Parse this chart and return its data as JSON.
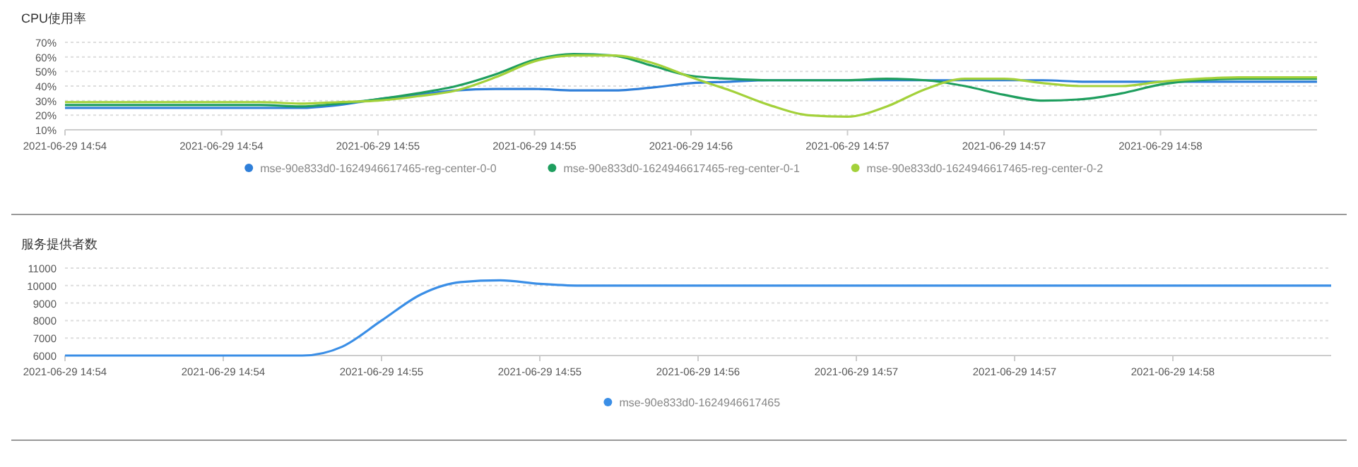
{
  "chart_data": [
    {
      "type": "line",
      "title": "CPU使用率",
      "categories": [
        "2021-06-29 14:54",
        null,
        null,
        null,
        "2021-06-29 14:54",
        null,
        null,
        null,
        "2021-06-29 14:55",
        null,
        null,
        null,
        "2021-06-29 14:55",
        null,
        null,
        null,
        "2021-06-29 14:56",
        null,
        null,
        null,
        "2021-06-29 14:57",
        null,
        null,
        null,
        "2021-06-29 14:57",
        null,
        null,
        null,
        "2021-06-29 14:58",
        null,
        null,
        null,
        null
      ],
      "ylim": [
        10,
        70
      ],
      "yticks": [
        {
          "value": 10,
          "label": "10%"
        },
        {
          "value": 20,
          "label": "20%"
        },
        {
          "value": 30,
          "label": "30%"
        },
        {
          "value": 40,
          "label": "40%"
        },
        {
          "value": 50,
          "label": "50%"
        },
        {
          "value": 60,
          "label": "60%"
        },
        {
          "value": 70,
          "label": "70%"
        }
      ],
      "grid": "y",
      "legend": "bottom",
      "marker": "none",
      "series": [
        {
          "name": "mse-90e833d0-1624946617465-reg-center-0-0",
          "color": "#2f7fd9",
          "values": [
            25,
            25,
            25,
            25,
            25,
            25,
            25,
            27,
            31,
            34,
            37,
            38,
            38,
            37,
            37,
            39,
            42,
            43,
            44,
            44,
            44,
            44,
            44,
            44,
            44,
            44,
            43,
            43,
            43,
            43,
            43,
            43,
            43
          ]
        },
        {
          "name": "mse-90e833d0-1624946617465-reg-center-0-1",
          "color": "#1e9e5e",
          "values": [
            27,
            27,
            27,
            27,
            27,
            27,
            26,
            28,
            31,
            35,
            40,
            48,
            58,
            62,
            61,
            54,
            47,
            45,
            44,
            44,
            44,
            45,
            44,
            40,
            34,
            30,
            31,
            35,
            41,
            44,
            45,
            45,
            45
          ]
        },
        {
          "name": "mse-90e833d0-1624946617465-reg-center-0-2",
          "color": "#a3d13a",
          "values": [
            29,
            29,
            29,
            29,
            29,
            29,
            28,
            29,
            30,
            33,
            37,
            46,
            57,
            61,
            61,
            56,
            46,
            37,
            27,
            20,
            19,
            26,
            38,
            45,
            45,
            42,
            40,
            40,
            43,
            45,
            46,
            46,
            46
          ]
        }
      ]
    },
    {
      "type": "line",
      "title": "服务提供者数",
      "categories": [
        "2021-06-29 14:54",
        null,
        null,
        null,
        "2021-06-29 14:54",
        null,
        null,
        null,
        "2021-06-29 14:55",
        null,
        null,
        null,
        "2021-06-29 14:55",
        null,
        null,
        null,
        "2021-06-29 14:56",
        null,
        null,
        null,
        "2021-06-29 14:57",
        null,
        null,
        null,
        "2021-06-29 14:57",
        null,
        null,
        null,
        "2021-06-29 14:58",
        null,
        null,
        null,
        null
      ],
      "ylim": [
        6000,
        11000
      ],
      "yticks": [
        6000,
        7000,
        8000,
        9000,
        10000,
        11000
      ],
      "grid": "y",
      "legend": "bottom",
      "marker": "none",
      "series": [
        {
          "name": "mse-90e833d0-1624946617465",
          "color": "#3a8ee6",
          "values": [
            6000,
            6000,
            6000,
            6000,
            6000,
            6000,
            6000,
            6500,
            8000,
            9500,
            10200,
            10300,
            10100,
            10000,
            10000,
            10000,
            10000,
            10000,
            10000,
            10000,
            10000,
            10000,
            10000,
            10000,
            10000,
            10000,
            10000,
            10000,
            10000,
            10000,
            10000,
            10000,
            10000
          ]
        }
      ]
    }
  ]
}
